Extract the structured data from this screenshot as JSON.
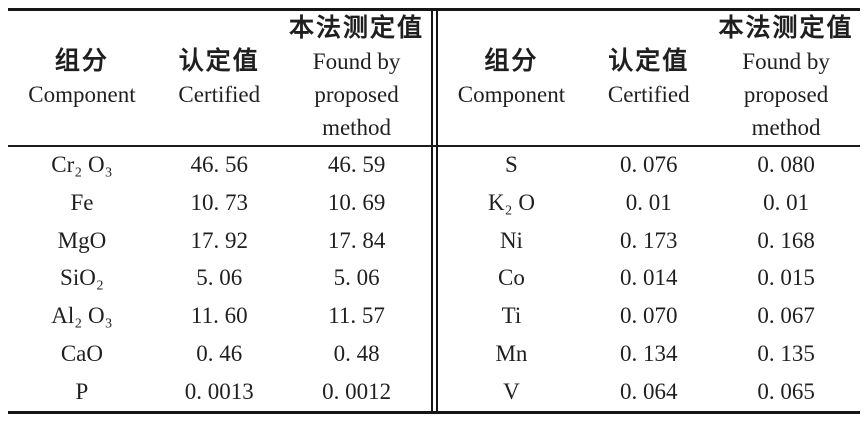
{
  "table": {
    "header": {
      "component_zh": "组分",
      "component_en": "Component",
      "certified_zh": "认定值",
      "certified_en": "Certified",
      "found_zh": "本法测定值",
      "found_line1": "Found by",
      "found_line2": "proposed",
      "found_line3": "method"
    },
    "left_rows": [
      {
        "component": "Cr₂ O₃",
        "certified": "46. 56",
        "found": "46. 59"
      },
      {
        "component": "Fe",
        "certified": "10. 73",
        "found": "10. 69"
      },
      {
        "component": "MgO",
        "certified": "17. 92",
        "found": "17. 84"
      },
      {
        "component": "SiO₂",
        "certified": "5. 06",
        "found": "5. 06"
      },
      {
        "component": "Al₂ O₃",
        "certified": "11. 60",
        "found": "11. 57"
      },
      {
        "component": "CaO",
        "certified": "0. 46",
        "found": "0. 48"
      },
      {
        "component": "P",
        "certified": "0. 0013",
        "found": "0. 0012"
      }
    ],
    "right_rows": [
      {
        "component": "S",
        "certified": "0. 076",
        "found": "0. 080"
      },
      {
        "component": "K₂ O",
        "certified": "0. 01",
        "found": "0. 01"
      },
      {
        "component": "Ni",
        "certified": "0. 173",
        "found": "0. 168"
      },
      {
        "component": "Co",
        "certified": "0. 014",
        "found": "0. 015"
      },
      {
        "component": "Ti",
        "certified": "0. 070",
        "found": "0. 067"
      },
      {
        "component": "Mn",
        "certified": "0. 134",
        "found": "0. 135"
      },
      {
        "component": "V",
        "certified": "0. 064",
        "found": "0. 065"
      }
    ]
  }
}
